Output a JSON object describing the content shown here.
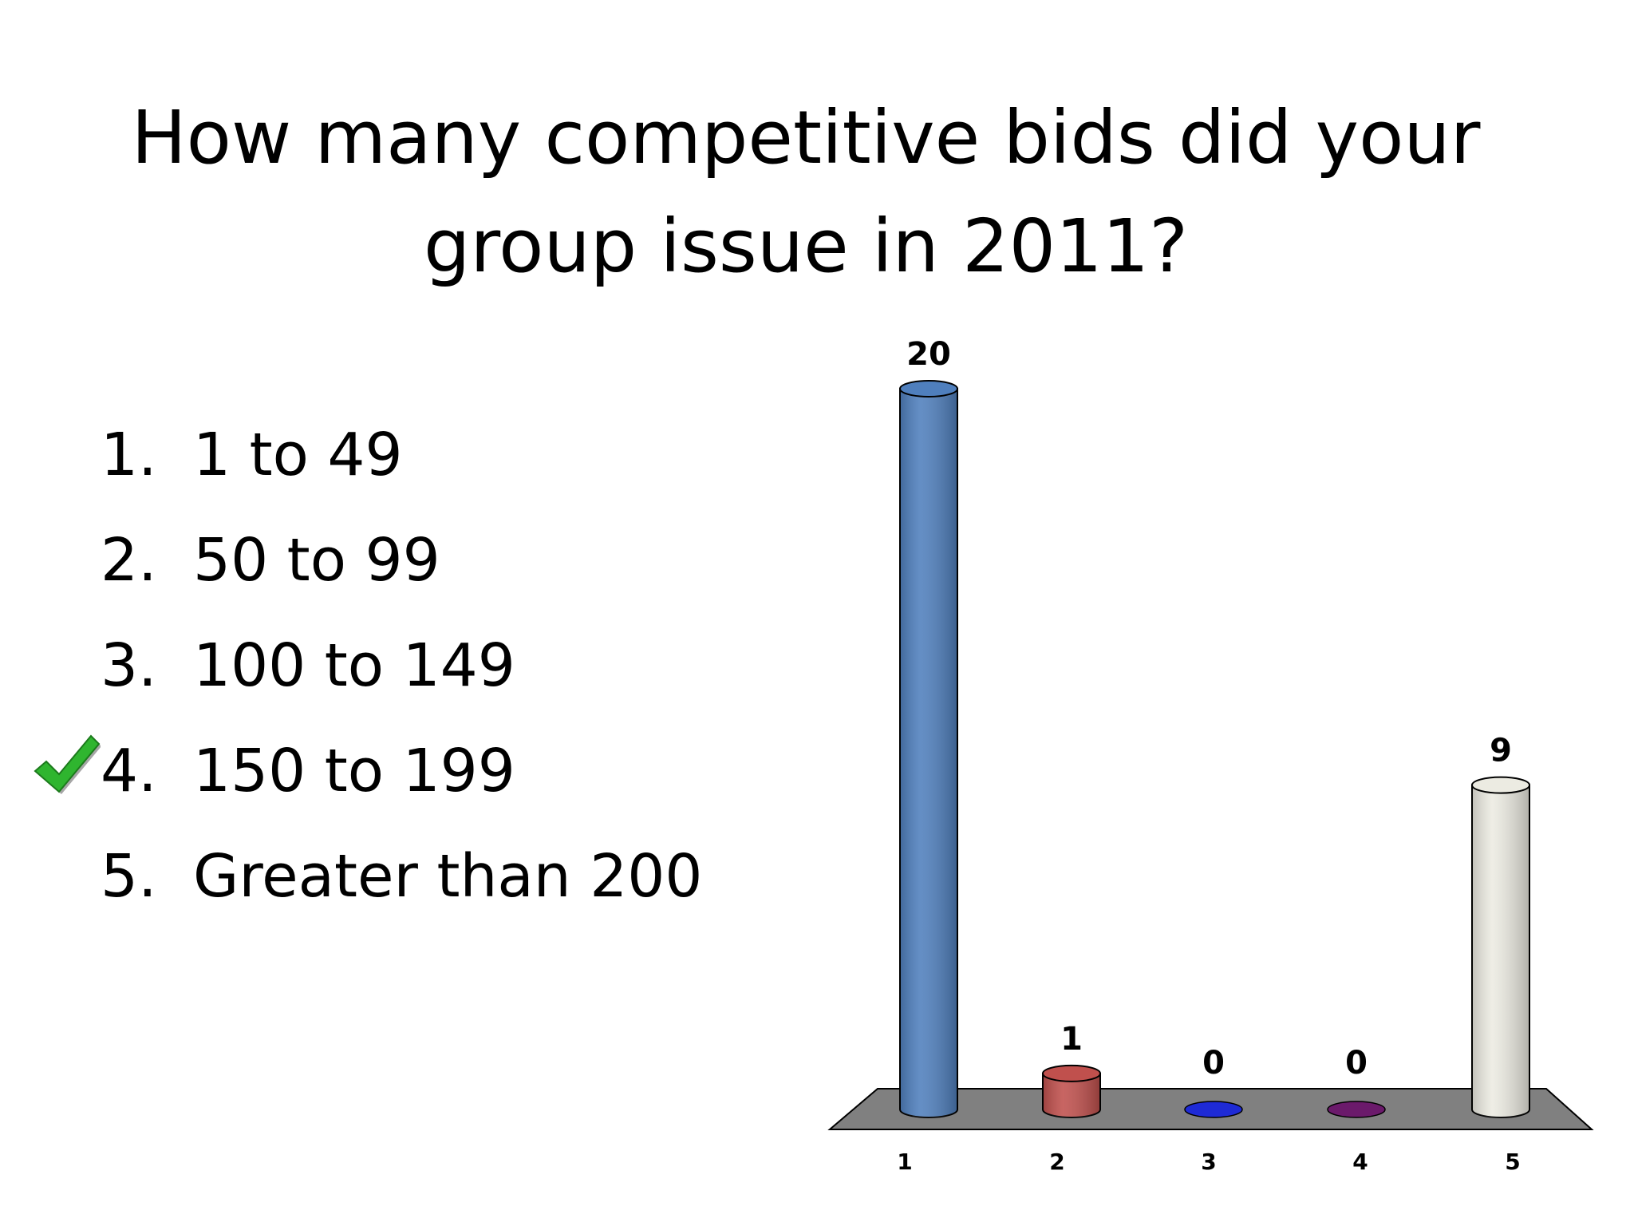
{
  "title": {
    "line1": "How many competitive bids did your",
    "line2": "group issue in 2011?"
  },
  "answers": [
    {
      "number": "1.",
      "label": "1 to 49",
      "correct": false
    },
    {
      "number": "2.",
      "label": "50 to 99",
      "correct": false
    },
    {
      "number": "3.",
      "label": "100 to 149",
      "correct": false
    },
    {
      "number": "4.",
      "label": "150 to 199",
      "correct": true
    },
    {
      "number": "5.",
      "label": "Greater than 200",
      "correct": false
    }
  ],
  "correct_icon": "check-mark-icon",
  "colors": {
    "check": "#2fb52f",
    "floor": "#808080"
  },
  "chart_data": {
    "type": "bar",
    "categories": [
      "1",
      "2",
      "3",
      "4",
      "5"
    ],
    "values": [
      20,
      1,
      0,
      0,
      9
    ],
    "data_labels": [
      "20",
      "1",
      "0",
      "0",
      "9"
    ],
    "colors": [
      "#4f7fbd",
      "#c0504d",
      "#1e2ad6",
      "#6b1a6b",
      "#ecebe2"
    ],
    "ylim": [
      0,
      20
    ],
    "grid": false,
    "legend": "none",
    "style": "3d-cylinder"
  }
}
